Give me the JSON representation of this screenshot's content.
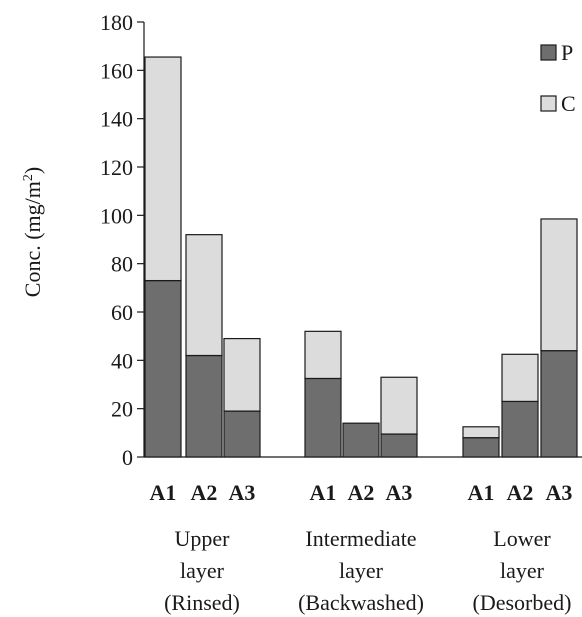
{
  "chart_data": {
    "type": "bar",
    "stacked": true,
    "ylabel": "Conc. (mg/m",
    "ylabel_sup": "2",
    "ylabel_close": ")",
    "ylim": [
      0,
      180
    ],
    "yticks": [
      0,
      20,
      40,
      60,
      80,
      100,
      120,
      140,
      160,
      180
    ],
    "grid": false,
    "legend_position": "top-right",
    "groups": [
      {
        "label_lines": [
          "Upper",
          "layer",
          "(Rinsed)"
        ],
        "categories": [
          "A1",
          "A2",
          "A3"
        ]
      },
      {
        "label_lines": [
          "Intermediate",
          "layer",
          "(Backwashed)"
        ],
        "categories": [
          "A1",
          "A2",
          "A3"
        ]
      },
      {
        "label_lines": [
          "Lower",
          "layer",
          "(Desorbed)"
        ],
        "categories": [
          "A1",
          "A2",
          "A3"
        ]
      }
    ],
    "series": [
      {
        "name": "P",
        "color": "#6e6e6e",
        "values": [
          73,
          42,
          19,
          32.5,
          14,
          9.5,
          8,
          23,
          44
        ]
      },
      {
        "name": "C",
        "color": "#dcdcdc",
        "values": [
          92.5,
          50,
          30,
          19.5,
          0,
          23.5,
          4.5,
          19.5,
          54.5
        ]
      }
    ]
  }
}
